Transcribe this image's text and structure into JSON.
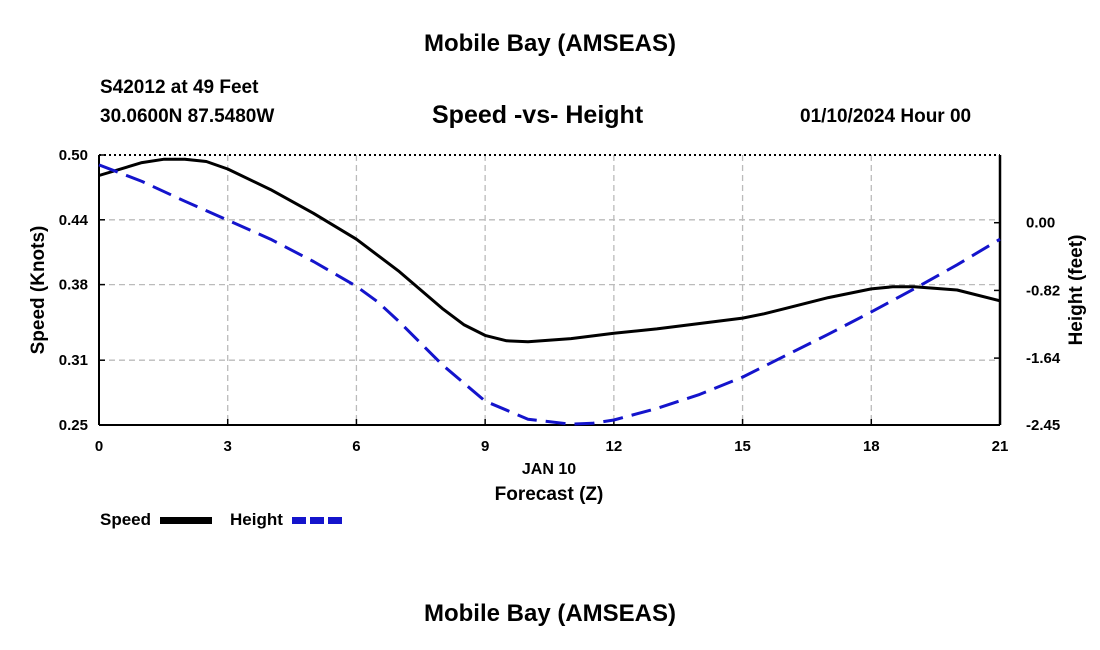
{
  "page": {
    "title_top": "Mobile Bay (AMSEAS)",
    "title_bottom": "Mobile Bay (AMSEAS)",
    "station": "S42012 at 49 Feet",
    "coords": "30.0600N  87.5480W",
    "subtitle": "Speed -vs- Height",
    "datetime": "01/10/2024 Hour 00"
  },
  "colors": {
    "speed": "#000000",
    "height": "#1414cc",
    "grid": "#bbbbbb"
  },
  "chart_data": {
    "type": "line",
    "title": "Speed -vs- Height",
    "xlabel": "Forecast (Z)",
    "xsublabel": "JAN 10",
    "ylabel": "Speed (Knots)",
    "y2label": "Height (feet)",
    "xlim": [
      0,
      21
    ],
    "ylim": [
      0.25,
      0.5
    ],
    "y2lim": [
      -2.45,
      0.82
    ],
    "xticks": [
      "0",
      "3",
      "6",
      "9",
      "12",
      "15",
      "18",
      "21"
    ],
    "yticks": [
      "0.25",
      "0.31",
      "0.38",
      "0.44",
      "0.50"
    ],
    "y2ticks": [
      "-2.45",
      "-1.64",
      "-0.82",
      "0.00"
    ],
    "grid": true,
    "legend": {
      "placement": "bottom-left",
      "entries": [
        "Speed",
        "Height"
      ]
    },
    "series": [
      {
        "name": "Speed",
        "axis": "left",
        "style": "solid",
        "x": [
          0,
          1,
          1.5,
          2,
          2.5,
          3,
          4,
          5,
          6,
          7,
          8,
          8.5,
          9,
          9.5,
          10,
          11,
          12,
          13,
          14,
          15,
          15.5,
          16,
          17,
          18,
          18.5,
          19,
          20,
          21
        ],
        "values": [
          0.481,
          0.493,
          0.496,
          0.496,
          0.494,
          0.487,
          0.468,
          0.446,
          0.422,
          0.392,
          0.358,
          0.343,
          0.333,
          0.328,
          0.327,
          0.33,
          0.335,
          0.339,
          0.344,
          0.349,
          0.353,
          0.358,
          0.368,
          0.376,
          0.378,
          0.378,
          0.375,
          0.365
        ]
      },
      {
        "name": "Height",
        "axis": "right",
        "style": "dashed",
        "x": [
          0,
          1,
          2,
          3,
          4,
          5,
          6,
          6.5,
          7,
          8,
          9,
          10,
          11,
          11.5,
          12,
          13,
          14,
          15,
          16,
          17,
          18,
          19,
          20,
          21
        ],
        "values": [
          0.7,
          0.5,
          0.26,
          0.03,
          -0.2,
          -0.47,
          -0.77,
          -0.96,
          -1.2,
          -1.72,
          -2.16,
          -2.38,
          -2.44,
          -2.43,
          -2.39,
          -2.25,
          -2.08,
          -1.87,
          -1.61,
          -1.35,
          -1.08,
          -0.8,
          -0.51,
          -0.2
        ]
      }
    ]
  }
}
